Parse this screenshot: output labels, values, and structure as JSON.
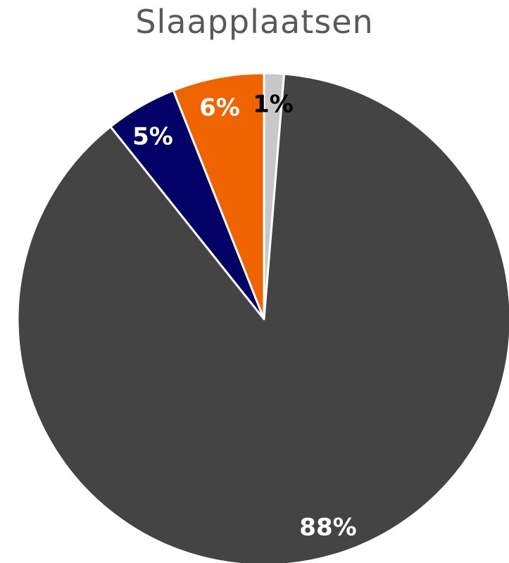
{
  "chart_data": {
    "type": "pie",
    "title": "Slaapplaatsen",
    "start_angle_deg": 0,
    "direction": "clockwise",
    "slices": [
      {
        "label": "1%",
        "value": 1.3,
        "color": "#c8c8c8",
        "label_color": "#000000"
      },
      {
        "label": "88%",
        "value": 88.0,
        "color": "#444444",
        "label_color": "#ffffff"
      },
      {
        "label": "5%",
        "value": 4.7,
        "color": "#000066",
        "label_color": "#ffffff"
      },
      {
        "label": "6%",
        "value": 6.0,
        "color": "#f06400",
        "label_color": "#ffffff"
      }
    ],
    "separator_color": "#ffffff"
  }
}
